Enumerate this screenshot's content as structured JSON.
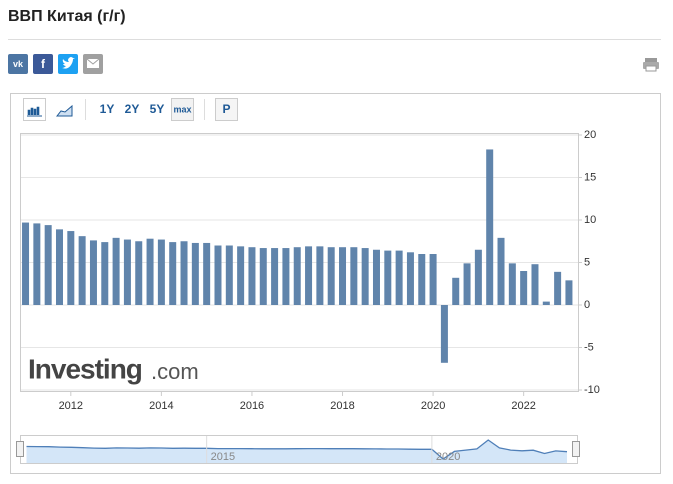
{
  "title": "ВВП Китая (г/г)",
  "share": [
    "vk",
    "f"
  ],
  "toolbar": [
    "1Y",
    "2Y",
    "5Y",
    "max",
    "P"
  ],
  "watermark": [
    "Investing",
    ".com"
  ],
  "chart_data": {
    "type": "bar",
    "color": "#6084ab",
    "x": [
      2011.0,
      2011.25,
      2011.5,
      2011.75,
      2012.0,
      2012.25,
      2012.5,
      2012.75,
      2013.0,
      2013.25,
      2013.5,
      2013.75,
      2014.0,
      2014.25,
      2014.5,
      2014.75,
      2015.0,
      2015.25,
      2015.5,
      2015.75,
      2016.0,
      2016.25,
      2016.5,
      2016.75,
      2017.0,
      2017.25,
      2017.5,
      2017.75,
      2018.0,
      2018.25,
      2018.5,
      2018.75,
      2019.0,
      2019.25,
      2019.5,
      2019.75,
      2020.0,
      2020.25,
      2020.5,
      2020.75,
      2021.0,
      2021.25,
      2021.5,
      2021.75,
      2022.0,
      2022.25,
      2022.5,
      2022.75,
      2023.0
    ],
    "values": [
      9.7,
      9.6,
      9.4,
      8.9,
      8.7,
      8.1,
      7.6,
      7.4,
      7.9,
      7.7,
      7.5,
      7.8,
      7.7,
      7.4,
      7.5,
      7.3,
      7.3,
      7.0,
      7.0,
      6.9,
      6.8,
      6.7,
      6.7,
      6.7,
      6.8,
      6.9,
      6.9,
      6.8,
      6.8,
      6.8,
      6.7,
      6.5,
      6.4,
      6.4,
      6.2,
      6.0,
      6.0,
      -6.8,
      3.2,
      4.9,
      6.5,
      18.3,
      7.9,
      4.9,
      4.0,
      4.8,
      0.4,
      3.9,
      2.9
    ],
    "xlim": [
      2010.9,
      2023.2
    ],
    "xticks": [
      2012,
      2014,
      2016,
      2018,
      2020,
      2022
    ],
    "ylim": [
      -10,
      20
    ],
    "yticks": [
      -10,
      -5,
      0,
      5,
      10,
      15,
      20
    ],
    "grid": true,
    "navigator": {
      "xticks": [
        2015,
        2020
      ],
      "color": "#4f7fb8",
      "fill": "#d4e6f8"
    }
  }
}
